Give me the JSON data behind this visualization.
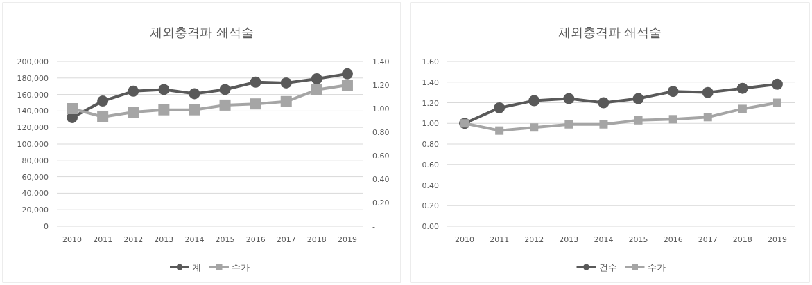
{
  "chart_data": [
    {
      "type": "line",
      "title": "체외충격파 쇄석술",
      "categories": [
        "2010",
        "2011",
        "2012",
        "2013",
        "2014",
        "2015",
        "2016",
        "2017",
        "2018",
        "2019"
      ],
      "series": [
        {
          "name": "계",
          "color": "#595959",
          "marker": "circle",
          "values": [
            132000,
            152000,
            164000,
            166000,
            161000,
            166000,
            175000,
            174000,
            179000,
            185000
          ]
        },
        {
          "name": "수가",
          "color": "#a5a5a5",
          "marker": "square",
          "axis": "y2",
          "values": [
            1.0,
            0.93,
            0.97,
            0.99,
            0.99,
            1.03,
            1.04,
            1.06,
            1.16,
            1.2
          ]
        }
      ],
      "ylim": [
        0,
        200000
      ],
      "yticks": [
        0,
        {
          "value": 20000,
          "label": "20,000"
        },
        {
          "value": 40000,
          "label": "40,000"
        },
        {
          "value": 60000,
          "label": "60,000"
        },
        {
          "value": 80000,
          "label": "80,000"
        },
        {
          "value": 100000,
          "label": "100,000"
        },
        {
          "value": 120000,
          "label": "120,000"
        },
        {
          "value": 140000,
          "label": "140,000"
        },
        {
          "value": 160000,
          "label": "160,000"
        },
        {
          "value": 180000,
          "label": "180,000"
        },
        {
          "value": 200000,
          "label": "200,000"
        }
      ],
      "y2lim": [
        0,
        1.4
      ],
      "y2ticks": [
        {
          "value": 0,
          "label": "-"
        },
        {
          "value": 0.2,
          "label": "0.20"
        },
        {
          "value": 0.4,
          "label": "0.40"
        },
        {
          "value": 0.6,
          "label": "0.60"
        },
        {
          "value": 0.8,
          "label": "0.80"
        },
        {
          "value": 1.0,
          "label": "1.00"
        },
        {
          "value": 1.2,
          "label": "1.20"
        },
        {
          "value": 1.4,
          "label": "1.40"
        }
      ],
      "grid": "y",
      "legend": "bottom",
      "line_style": "solid"
    },
    {
      "type": "line",
      "title": "체외충격파 쇄석술",
      "categories": [
        "2010",
        "2011",
        "2012",
        "2013",
        "2014",
        "2015",
        "2016",
        "2017",
        "2018",
        "2019"
      ],
      "series": [
        {
          "name": "건수",
          "color": "#595959",
          "marker": "circle",
          "values": [
            1.0,
            1.15,
            1.22,
            1.24,
            1.2,
            1.24,
            1.31,
            1.3,
            1.34,
            1.38
          ]
        },
        {
          "name": "수가",
          "color": "#a5a5a5",
          "marker": "square",
          "values": [
            1.0,
            0.93,
            0.96,
            0.99,
            0.99,
            1.03,
            1.04,
            1.06,
            1.14,
            1.2
          ]
        }
      ],
      "ylim": [
        0,
        1.6
      ],
      "yticks": [
        {
          "value": 0,
          "label": "0.00"
        },
        {
          "value": 0.2,
          "label": "0.20"
        },
        {
          "value": 0.4,
          "label": "0.40"
        },
        {
          "value": 0.6,
          "label": "0.60"
        },
        {
          "value": 0.8,
          "label": "0.80"
        },
        {
          "value": 1.0,
          "label": "1.00"
        },
        {
          "value": 1.2,
          "label": "1.20"
        },
        {
          "value": 1.4,
          "label": "1.40"
        },
        {
          "value": 1.6,
          "label": "1.60"
        }
      ],
      "grid": "y",
      "legend": "bottom",
      "line_style": "solid"
    }
  ]
}
